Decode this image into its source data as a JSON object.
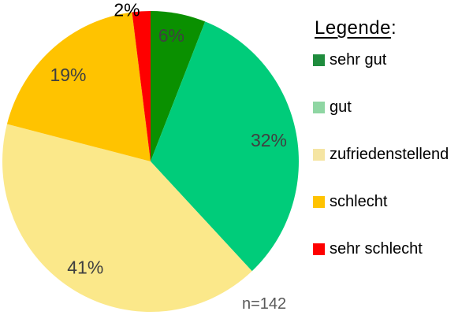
{
  "chart_data": {
    "type": "pie",
    "categories": [
      "sehr gut",
      "gut",
      "zufriedenstellend",
      "schlecht",
      "sehr schlecht"
    ],
    "values": [
      6,
      32,
      41,
      19,
      2
    ],
    "labels": [
      "6%",
      "32%",
      "41%",
      "19%",
      "2%"
    ],
    "colors": [
      "#0a9000",
      "#00cc7a",
      "#fbe88a",
      "#ffc300",
      "#fe0000"
    ],
    "legend_swatch_colors": [
      "#1f8c3d",
      "#8fd6a3",
      "#f5e5a3",
      "#ffc300",
      "#fe0000"
    ],
    "label_colors": [
      "#404040",
      "#404040",
      "#404040",
      "#404040",
      "#000000"
    ],
    "label_outside": [
      false,
      false,
      false,
      false,
      true
    ],
    "start_angle_deg": 0,
    "direction": "clockwise",
    "legend": {
      "title": "Legende",
      "colon": ":",
      "position": "right"
    },
    "annotation": "n=142",
    "annotation_color": "#595959",
    "background": "#ffffff"
  }
}
